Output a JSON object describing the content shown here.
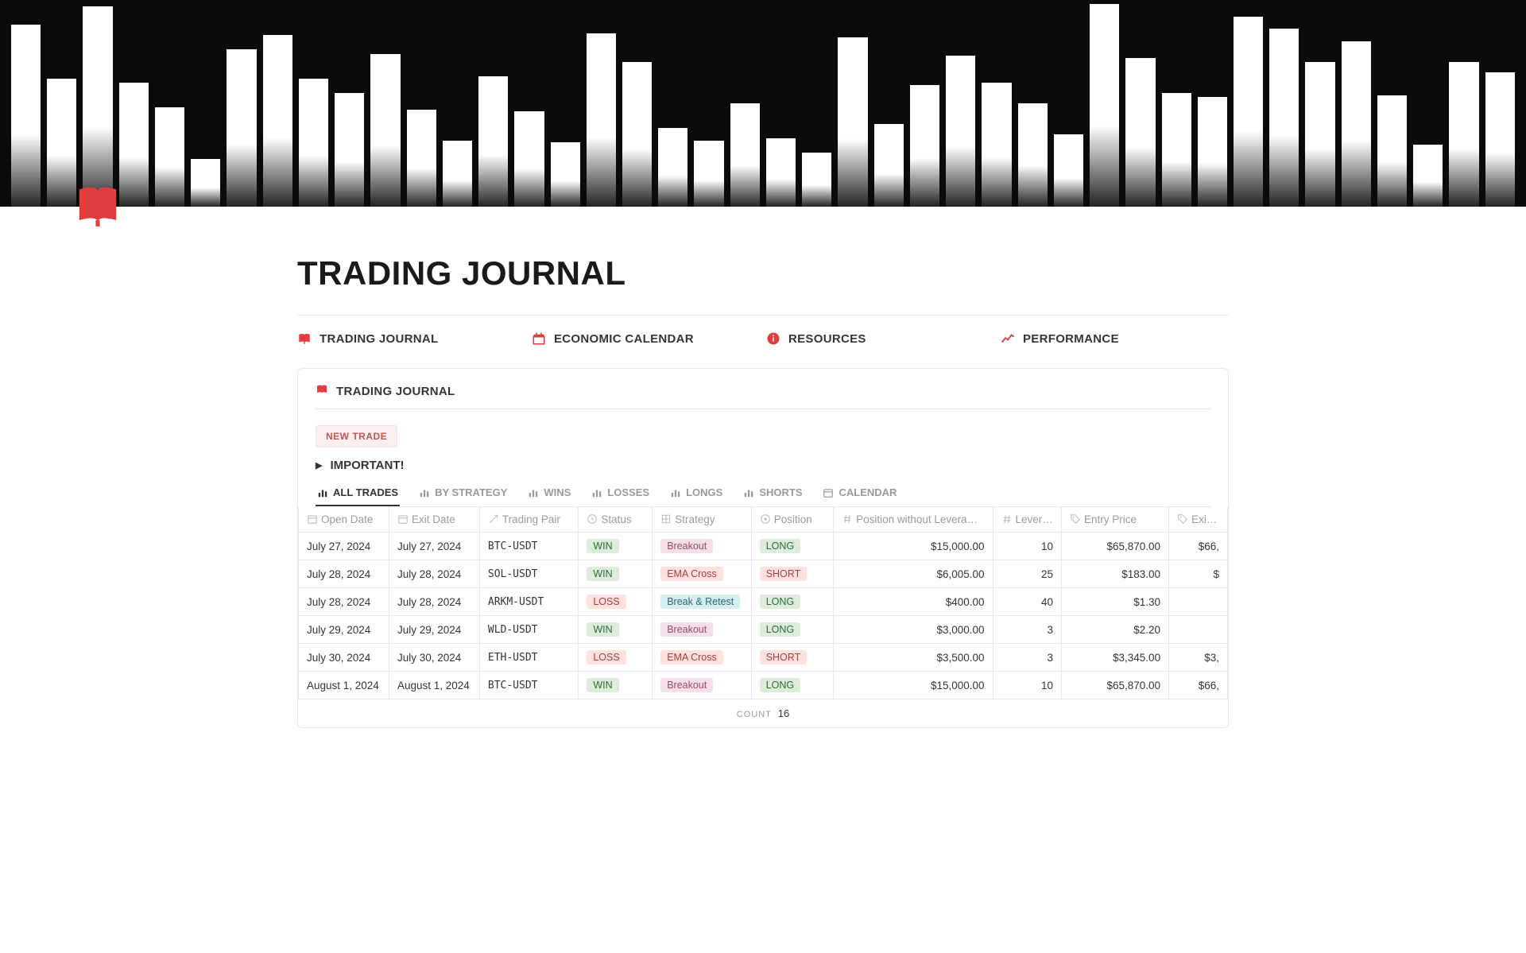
{
  "page": {
    "title": "TRADING JOURNAL"
  },
  "hero": {
    "background_color": "#0a0a0a",
    "bar_heights_pct": [
      88,
      62,
      97,
      60,
      48,
      23,
      76,
      83,
      62,
      55,
      74,
      47,
      32,
      63,
      46,
      31,
      84,
      70,
      38,
      32,
      50,
      33,
      26,
      82,
      40,
      59,
      73,
      60,
      50,
      35,
      98,
      72,
      55,
      53,
      92,
      86,
      70,
      80,
      54,
      30,
      70,
      65
    ],
    "bar_color_top": "#ffffff",
    "bar_color_bottom": "rgba(255,255,255,0.1)"
  },
  "nav": {
    "items": [
      {
        "id": "trading-journal",
        "label": "TRADING JOURNAL",
        "icon": "book"
      },
      {
        "id": "economic-calendar",
        "label": "ECONOMIC CALENDAR",
        "icon": "calendar"
      },
      {
        "id": "resources",
        "label": "RESOURCES",
        "icon": "info"
      },
      {
        "id": "performance",
        "label": "PERFORMANCE",
        "icon": "trend"
      }
    ]
  },
  "card": {
    "title": "TRADING JOURNAL",
    "new_trade_label": "NEW TRADE",
    "important_label": "IMPORTANT!",
    "tabs": [
      {
        "id": "all",
        "label": "ALL TRADES",
        "icon": "bar",
        "active": true
      },
      {
        "id": "strategy",
        "label": "BY STRATEGY",
        "icon": "bar"
      },
      {
        "id": "wins",
        "label": "WINS",
        "icon": "bar"
      },
      {
        "id": "losses",
        "label": "LOSSES",
        "icon": "bar"
      },
      {
        "id": "longs",
        "label": "LONGS",
        "icon": "bar"
      },
      {
        "id": "shorts",
        "label": "SHORTS",
        "icon": "bar"
      },
      {
        "id": "calendar",
        "label": "CALENDAR",
        "icon": "cal"
      }
    ],
    "columns": [
      {
        "id": "open_date",
        "label": "Open Date",
        "icon": "cal",
        "cls": "c-open"
      },
      {
        "id": "exit_date",
        "label": "Exit Date",
        "icon": "cal",
        "cls": "c-exit"
      },
      {
        "id": "pair",
        "label": "Trading Pair",
        "icon": "link",
        "cls": "c-pair"
      },
      {
        "id": "status",
        "label": "Status",
        "icon": "circle",
        "cls": "c-status"
      },
      {
        "id": "strategy",
        "label": "Strategy",
        "icon": "target",
        "cls": "c-strat"
      },
      {
        "id": "position",
        "label": "Position",
        "icon": "disc",
        "cls": "c-pos"
      },
      {
        "id": "pos_wo_lev",
        "label": "Position without Levera…",
        "icon": "hash",
        "cls": "c-pwl"
      },
      {
        "id": "leverage",
        "label": "Levera…",
        "icon": "hash",
        "cls": "c-lev"
      },
      {
        "id": "entry_price",
        "label": "Entry Price",
        "icon": "tag",
        "cls": "c-entry"
      },
      {
        "id": "exit_price",
        "label": "Exit Pric",
        "icon": "tag",
        "cls": "c-exitp"
      }
    ],
    "rows": [
      {
        "open_date": "July 27, 2024",
        "exit_date": "July 27, 2024",
        "pair": "BTC-USDT",
        "status": "WIN",
        "strategy": "Breakout",
        "position": "LONG",
        "pos_wo_lev": "$15,000.00",
        "leverage": "10",
        "entry_price": "$65,870.00",
        "exit_price": "$66,"
      },
      {
        "open_date": "July 28, 2024",
        "exit_date": "July 28, 2024",
        "pair": "SOL-USDT",
        "status": "WIN",
        "strategy": "EMA Cross",
        "position": "SHORT",
        "pos_wo_lev": "$6,005.00",
        "leverage": "25",
        "entry_price": "$183.00",
        "exit_price": "$"
      },
      {
        "open_date": "July 28, 2024",
        "exit_date": "July 28, 2024",
        "pair": "ARKM-USDT",
        "status": "LOSS",
        "strategy": "Break & Retest",
        "position": "LONG",
        "pos_wo_lev": "$400.00",
        "leverage": "40",
        "entry_price": "$1.30",
        "exit_price": ""
      },
      {
        "open_date": "July 29, 2024",
        "exit_date": "July 29, 2024",
        "pair": "WLD-USDT",
        "status": "WIN",
        "strategy": "Breakout",
        "position": "LONG",
        "pos_wo_lev": "$3,000.00",
        "leverage": "3",
        "entry_price": "$2.20",
        "exit_price": ""
      },
      {
        "open_date": "July 30, 2024",
        "exit_date": "July 30, 2024",
        "pair": "ETH-USDT",
        "status": "LOSS",
        "strategy": "EMA Cross",
        "position": "SHORT",
        "pos_wo_lev": "$3,500.00",
        "leverage": "3",
        "entry_price": "$3,345.00",
        "exit_price": "$3,"
      },
      {
        "open_date": "August 1, 2024",
        "exit_date": "August 1, 2024",
        "pair": "BTC-USDT",
        "status": "WIN",
        "strategy": "Breakout",
        "position": "LONG",
        "pos_wo_lev": "$15,000.00",
        "leverage": "10",
        "entry_price": "$65,870.00",
        "exit_price": "$66,"
      }
    ],
    "count_label": "COUNT",
    "count_value": "16"
  },
  "pill_map": {
    "WIN": "pill-green",
    "LOSS": "pill-red",
    "Breakout": "pill-pink",
    "EMA Cross": "pill-red",
    "Break & Retest": "pill-teal",
    "LONG": "pill-green",
    "SHORT": "pill-red"
  },
  "colors": {
    "accent": "#e03e3e",
    "border": "#e9e9e7",
    "text_muted": "#9b9a97"
  }
}
